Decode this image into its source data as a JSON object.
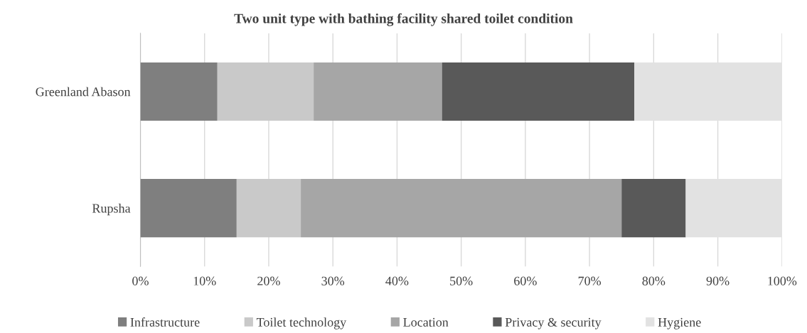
{
  "chart_data": {
    "type": "bar",
    "orientation": "horizontal",
    "stacked": true,
    "title": "Two unit type with bathing facility shared toilet condition",
    "categories": [
      "Greenland Abason",
      "Rupsha"
    ],
    "series": [
      {
        "name": "Infrastructure",
        "color": "#7f7f7f",
        "values": [
          12,
          15
        ]
      },
      {
        "name": "Toilet technology",
        "color": "#c9c9c9",
        "values": [
          15,
          10
        ]
      },
      {
        "name": "Location",
        "color": "#a6a6a6",
        "values": [
          20,
          50
        ]
      },
      {
        "name": "Privacy & security",
        "color": "#595959",
        "values": [
          30,
          10
        ]
      },
      {
        "name": "Hygiene",
        "color": "#e2e2e2",
        "values": [
          23,
          15
        ]
      }
    ],
    "xlim": [
      0,
      100
    ],
    "xticks": [
      {
        "value": 0,
        "label": "0%"
      },
      {
        "value": 10,
        "label": "10%"
      },
      {
        "value": 20,
        "label": "20%"
      },
      {
        "value": 30,
        "label": "30%"
      },
      {
        "value": 40,
        "label": "40%"
      },
      {
        "value": 50,
        "label": "50%"
      },
      {
        "value": 60,
        "label": "60%"
      },
      {
        "value": 70,
        "label": "70%"
      },
      {
        "value": 80,
        "label": "80%"
      },
      {
        "value": 90,
        "label": "90%"
      },
      {
        "value": 100,
        "label": "100%"
      }
    ],
    "grid": "x",
    "legend": "bottom"
  }
}
